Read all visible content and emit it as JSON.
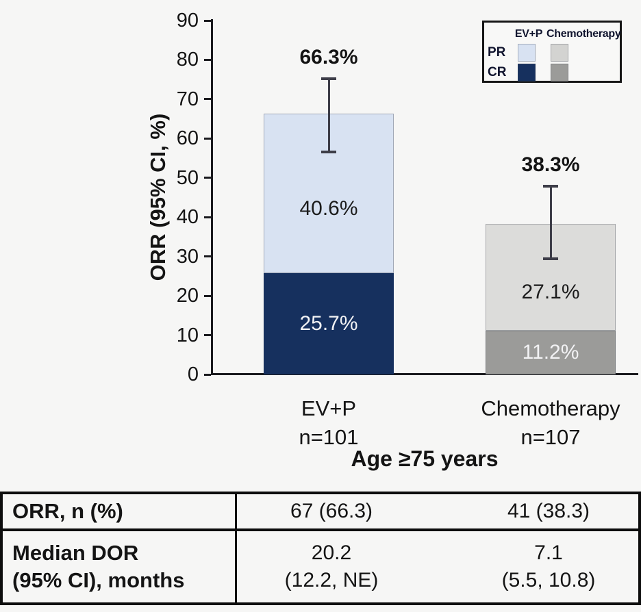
{
  "chart_data": {
    "type": "bar",
    "stacked": true,
    "title": "",
    "ylabel": "ORR (95% CI, %)",
    "xlabel": "Age ≥75 years",
    "ylim": [
      0,
      90
    ],
    "yticks": [
      0,
      10,
      20,
      30,
      40,
      50,
      60,
      70,
      80,
      90
    ],
    "grid": false,
    "legend_position": "top-right",
    "groups": [
      {
        "label": "EV+P",
        "sublabel": "n=101",
        "total": 66.3,
        "total_label": "66.3%",
        "ci": [
          56.2,
          75.6
        ],
        "segments": [
          {
            "name": "CR",
            "value": 25.7,
            "label": "25.7%",
            "color": "#16305e",
            "text_color": "#f2f2f4",
            "border": false
          },
          {
            "name": "PR",
            "value": 40.6,
            "label": "40.6%",
            "color": "#d8e2f2",
            "text_color": "#1c1c1c",
            "border": true
          }
        ]
      },
      {
        "label": "Chemotherapy",
        "sublabel": "n=107",
        "total": 38.3,
        "total_label": "38.3%",
        "ci": [
          29.1,
          48.2
        ],
        "segments": [
          {
            "name": "CR",
            "value": 11.2,
            "label": "11.2%",
            "color": "#9b9b99",
            "text_color": "#f2f2f4",
            "border": true
          },
          {
            "name": "PR",
            "value": 27.1,
            "label": "27.1%",
            "color": "#dcdcda",
            "text_color": "#1c1c1c",
            "border": true
          }
        ]
      }
    ]
  },
  "legend": {
    "col_headers": [
      "EV+P",
      "Chemotherapy"
    ],
    "rows": [
      {
        "label": "PR",
        "swatches": [
          "#d8e2f2",
          "#d3d3d1"
        ]
      },
      {
        "label": "CR",
        "swatches": [
          "#16305e",
          "#9b9b99"
        ]
      }
    ]
  },
  "table": {
    "rows": [
      {
        "label_lines": [
          "ORR, n (%)"
        ],
        "values": [
          [
            "67 (66.3)"
          ],
          [
            "41 (38.3)"
          ]
        ]
      },
      {
        "label_lines": [
          "Median DOR",
          "(95% CI), months"
        ],
        "values": [
          [
            "20.2",
            "(12.2, NE)"
          ],
          [
            "7.1",
            "(5.5, 10.8)"
          ]
        ]
      }
    ]
  },
  "colors": {
    "background": "#f6f6f5",
    "axis": "#1a1a1e",
    "error_bar": "#3d3d48",
    "text": "#141414",
    "table_border": "#0d0d0d"
  }
}
